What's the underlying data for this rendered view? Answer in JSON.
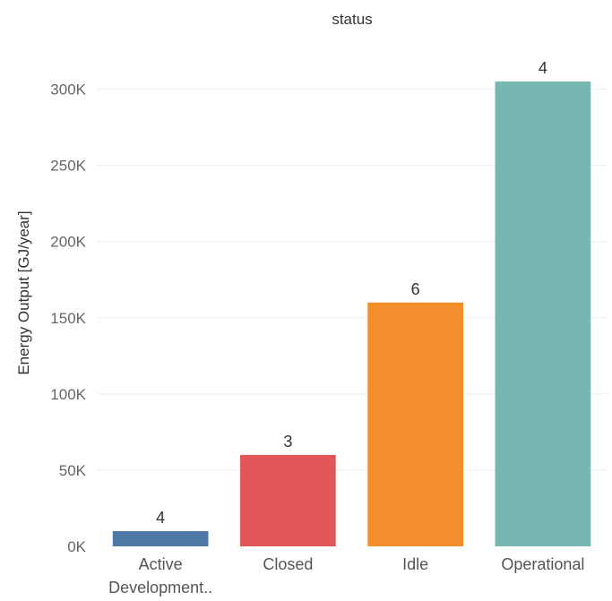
{
  "chart_data": {
    "type": "bar",
    "title": "status",
    "xlabel": "",
    "ylabel": "Energy Output [GJ/year]",
    "categories": [
      [
        "Active",
        "Development.."
      ],
      [
        "Closed"
      ],
      [
        "Idle"
      ],
      [
        "Operational"
      ]
    ],
    "values": [
      10000,
      60000,
      160000,
      305000
    ],
    "data_labels": [
      "4",
      "3",
      "6",
      "4"
    ],
    "colors": [
      "#4e79a7",
      "#e15759",
      "#f28e2b",
      "#76b7b2"
    ],
    "ylim": [
      0,
      335000
    ],
    "yticks": [
      {
        "value": 0,
        "label": "0K"
      },
      {
        "value": 50000,
        "label": "50K"
      },
      {
        "value": 100000,
        "label": "100K"
      },
      {
        "value": 150000,
        "label": "150K"
      },
      {
        "value": 200000,
        "label": "200K"
      },
      {
        "value": 250000,
        "label": "250K"
      },
      {
        "value": 300000,
        "label": "300K"
      }
    ],
    "grid": true,
    "legend": "none"
  }
}
